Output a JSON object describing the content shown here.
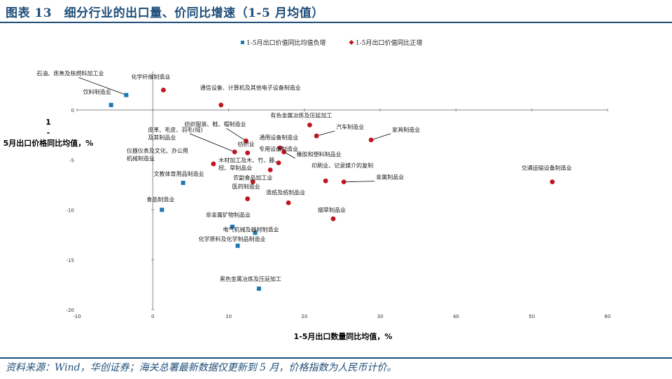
{
  "header": {
    "title": "图表 13　细分行业的出口量、价同比增速（1-5 月均值）"
  },
  "footer": {
    "source": "资料来源：Wind，华创证券；海关总署最新数据仅更新到 5 月，价格指数为人民币计价。"
  },
  "colors": {
    "title": "#1f4e79",
    "negative": "#1f77b4",
    "positive": "#c0141f"
  },
  "chart_data": {
    "type": "scatter",
    "xlabel": "1-5月出口数量同比均值，%",
    "ylabel": "1-5月出口价格同比均值，%",
    "xlim": [
      -10,
      60
    ],
    "ylim": [
      -20,
      0
    ],
    "x_ticks": [
      "-10",
      "0",
      "10",
      "20",
      "30",
      "40",
      "50",
      "60"
    ],
    "y_ticks": [
      "0",
      "-5",
      "-10",
      "-15",
      "-20"
    ],
    "legend_position": "top",
    "series": [
      {
        "name": "1-5月出口价值同比均值负增",
        "marker": "square",
        "points": [
          {
            "label": "石油、炼焦及核燃料加工业",
            "x": -3.5,
            "y": 1.5
          },
          {
            "label": "饮料制造业",
            "x": -5.5,
            "y": 0.5
          },
          {
            "label": "文教体育用品制造业",
            "x": 4.0,
            "y": -7.3
          },
          {
            "label": "食品制造业",
            "x": 1.2,
            "y": -10.0
          },
          {
            "label": "非金属矿物制品业",
            "x": 10.5,
            "y": -11.7
          },
          {
            "label": "电气机械及器材制造业",
            "x": 13.5,
            "y": -12.3
          },
          {
            "label": "化学原料及化学制品制造业",
            "x": 11.2,
            "y": -13.6
          },
          {
            "label": "黑色金属冶炼及压延加工",
            "x": 14.0,
            "y": -17.9
          }
        ]
      },
      {
        "name": "1-5月出口价值同比正增",
        "marker": "diamond",
        "points": [
          {
            "label": "化学纤维制造业",
            "x": 1.4,
            "y": 2.0
          },
          {
            "label": "通信设备、计算机及其他电子设备制造业",
            "x": 9.0,
            "y": 0.5
          },
          {
            "label": "有色金属冶炼及压延加工",
            "x": 20.7,
            "y": -1.5
          },
          {
            "label": "汽车制造业",
            "x": 21.6,
            "y": -2.6
          },
          {
            "label": "家具制造业",
            "x": 28.8,
            "y": -3.0
          },
          {
            "label": "纺织服装、鞋、帽制造业",
            "x": 12.3,
            "y": -3.1
          },
          {
            "label": "纺织业",
            "x": 12.5,
            "y": -4.3
          },
          {
            "label": "通用设备制造业",
            "x": 16.8,
            "y": -3.8
          },
          {
            "label": "皮革、毛皮、羽毛(绒)及其制品业",
            "x": 10.8,
            "y": -4.2
          },
          {
            "label": "橡胶和塑料制品业",
            "x": 17.3,
            "y": -4.2
          },
          {
            "label": "专用设备制造业",
            "x": 16.6,
            "y": -5.3
          },
          {
            "label": "仪器仪表及文化、办公用机械制造业",
            "x": 8.0,
            "y": -5.4
          },
          {
            "label": "木材加工及木、竹、藤、棕、草制品业",
            "x": 15.5,
            "y": -6.0
          },
          {
            "label": "农副食品加工业",
            "x": 13.2,
            "y": -7.2
          },
          {
            "label": "印刷业、记录媒介的复制",
            "x": 22.8,
            "y": -7.1
          },
          {
            "label": "金属制品业",
            "x": 25.2,
            "y": -7.2
          },
          {
            "label": "交通运输设备制造业",
            "x": 52.7,
            "y": -7.2
          },
          {
            "label": "医药制造业",
            "x": 12.5,
            "y": -8.9
          },
          {
            "label": "造纸及纸制品业",
            "x": 17.9,
            "y": -9.3
          },
          {
            "label": "烟草制品业",
            "x": 23.8,
            "y": -10.9
          }
        ]
      }
    ]
  }
}
